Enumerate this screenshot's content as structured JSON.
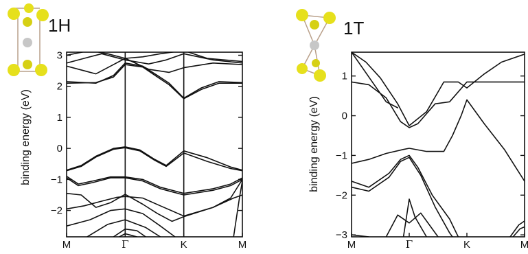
{
  "chart_data": [
    {
      "type": "line",
      "title": "1H",
      "ylabel": "binding energy (eV)",
      "ylim": [
        -2.85,
        3.1
      ],
      "xlim": [
        0,
        3
      ],
      "x_ticks": [
        {
          "label": "M",
          "pos": 0
        },
        {
          "label": "Γ",
          "pos": 1
        },
        {
          "label": "K",
          "pos": 2
        },
        {
          "label": "M",
          "pos": 3
        }
      ],
      "y_ticks": [
        -2,
        -1,
        0,
        1,
        2,
        3
      ],
      "vertical_lines": [
        1,
        2
      ],
      "series": [
        {
          "values": [
            [
              0,
              3.0
            ],
            [
              0.4,
              3.15
            ],
            [
              0.7,
              3.05
            ],
            [
              1,
              2.9
            ],
            [
              1.3,
              2.95
            ],
            [
              1.6,
              3.05
            ],
            [
              2,
              3.15
            ],
            [
              2.4,
              2.9
            ],
            [
              3,
              2.8
            ]
          ]
        },
        {
          "values": [
            [
              0,
              2.75
            ],
            [
              0.3,
              2.9
            ],
            [
              0.6,
              3.05
            ],
            [
              1,
              2.85
            ],
            [
              1.4,
              2.72
            ],
            [
              1.7,
              2.85
            ],
            [
              2,
              3.05
            ],
            [
              2.5,
              2.85
            ],
            [
              3,
              2.75
            ]
          ]
        },
        {
          "values": [
            [
              0,
              2.65
            ],
            [
              0.5,
              2.4
            ],
            [
              0.8,
              2.7
            ],
            [
              1,
              2.9
            ],
            [
              1.4,
              2.55
            ],
            [
              1.75,
              2.45
            ],
            [
              2,
              2.6
            ],
            [
              2.5,
              2.75
            ],
            [
              3,
              2.7
            ]
          ]
        },
        {
          "values": [
            [
              0,
              2.15
            ],
            [
              0.5,
              2.1
            ],
            [
              0.8,
              2.35
            ],
            [
              1,
              2.75
            ],
            [
              1.3,
              2.65
            ],
            [
              1.55,
              2.35
            ],
            [
              1.75,
              2.1
            ],
            [
              2,
              1.62
            ],
            [
              2.3,
              1.95
            ],
            [
              2.6,
              2.15
            ],
            [
              3,
              2.12
            ]
          ]
        },
        {
          "values": [
            [
              0,
              2.1
            ],
            [
              0.5,
              2.12
            ],
            [
              0.8,
              2.3
            ],
            [
              1,
              2.7
            ],
            [
              1.3,
              2.62
            ],
            [
              1.55,
              2.3
            ],
            [
              1.75,
              2.05
            ],
            [
              2,
              1.6
            ],
            [
              2.3,
              1.9
            ],
            [
              2.6,
              2.1
            ],
            [
              3,
              2.1
            ]
          ]
        },
        {
          "values": [
            [
              0,
              -0.7
            ],
            [
              0.25,
              -0.55
            ],
            [
              0.5,
              -0.25
            ],
            [
              0.8,
              0.0
            ],
            [
              1,
              0.05
            ],
            [
              1.25,
              -0.05
            ],
            [
              1.5,
              -0.35
            ],
            [
              1.7,
              -0.55
            ],
            [
              2,
              -0.08
            ],
            [
              2.4,
              -0.3
            ],
            [
              2.8,
              -0.6
            ],
            [
              3,
              -0.7
            ]
          ]
        },
        {
          "values": [
            [
              0,
              -0.72
            ],
            [
              0.25,
              -0.58
            ],
            [
              0.5,
              -0.28
            ],
            [
              0.8,
              -0.03
            ],
            [
              1,
              0.02
            ],
            [
              1.25,
              -0.08
            ],
            [
              1.5,
              -0.38
            ],
            [
              1.7,
              -0.58
            ],
            [
              2,
              -0.15
            ],
            [
              2.4,
              -0.42
            ],
            [
              2.8,
              -0.65
            ],
            [
              3,
              -0.72
            ]
          ]
        },
        {
          "values": [
            [
              0,
              -0.9
            ],
            [
              0.2,
              -1.15
            ],
            [
              0.45,
              -1.05
            ],
            [
              0.75,
              -0.92
            ],
            [
              1,
              -0.92
            ],
            [
              1.3,
              -1.0
            ],
            [
              1.6,
              -1.25
            ],
            [
              2,
              -1.45
            ],
            [
              2.5,
              -1.3
            ],
            [
              2.8,
              -1.15
            ],
            [
              3,
              -0.95
            ]
          ]
        },
        {
          "values": [
            [
              0,
              -0.95
            ],
            [
              0.2,
              -1.2
            ],
            [
              0.45,
              -1.1
            ],
            [
              0.75,
              -0.95
            ],
            [
              1,
              -0.95
            ],
            [
              1.3,
              -1.05
            ],
            [
              1.6,
              -1.3
            ],
            [
              2,
              -1.5
            ],
            [
              2.5,
              -1.35
            ],
            [
              2.8,
              -1.2
            ],
            [
              3,
              -1.0
            ]
          ]
        },
        {
          "values": [
            [
              0,
              -1.45
            ],
            [
              0.25,
              -1.5
            ],
            [
              0.5,
              -1.9
            ],
            [
              0.75,
              -1.75
            ],
            [
              1,
              -1.48
            ],
            [
              1.3,
              -1.8
            ],
            [
              1.55,
              -2.1
            ],
            [
              1.8,
              -2.35
            ],
            [
              2,
              -2.2
            ],
            [
              2.5,
              -1.9
            ],
            [
              2.8,
              -1.6
            ],
            [
              3,
              -1.0
            ]
          ]
        },
        {
          "values": [
            [
              0,
              -1.95
            ],
            [
              0.3,
              -1.85
            ],
            [
              0.6,
              -1.7
            ],
            [
              0.85,
              -1.58
            ],
            [
              1,
              -1.55
            ],
            [
              1.3,
              -1.6
            ],
            [
              1.6,
              -1.85
            ],
            [
              2,
              -2.18
            ],
            [
              2.5,
              -1.9
            ],
            [
              2.85,
              -1.6
            ],
            [
              3,
              -1.5
            ]
          ]
        },
        {
          "values": [
            [
              0,
              -2.5
            ],
            [
              0.4,
              -2.3
            ],
            [
              0.75,
              -2.0
            ],
            [
              1,
              -1.95
            ],
            [
              1.3,
              -2.1
            ],
            [
              1.6,
              -2.5
            ],
            [
              1.85,
              -2.85
            ]
          ]
        },
        {
          "values": [
            [
              0.35,
              -2.85
            ],
            [
              0.7,
              -2.45
            ],
            [
              1,
              -2.3
            ],
            [
              1.35,
              -2.55
            ],
            [
              1.6,
              -2.85
            ]
          ]
        },
        {
          "values": [
            [
              0.8,
              -2.85
            ],
            [
              1,
              -2.6
            ],
            [
              1.2,
              -2.65
            ],
            [
              1.35,
              -2.85
            ]
          ]
        },
        {
          "values": [
            [
              0.9,
              -2.85
            ],
            [
              1,
              -2.75
            ],
            [
              1.1,
              -2.8
            ],
            [
              1.2,
              -2.85
            ]
          ]
        },
        {
          "values": [
            [
              2.85,
              -2.85
            ],
            [
              2.95,
              -1.6
            ],
            [
              3,
              -1.05
            ]
          ]
        }
      ]
    },
    {
      "type": "line",
      "title": "1T",
      "ylabel": "binding energy (eV)",
      "ylim": [
        -3.05,
        1.6
      ],
      "xlim": [
        0,
        3
      ],
      "x_ticks": [
        {
          "label": "M",
          "pos": 0
        },
        {
          "label": "Γ",
          "pos": 1
        },
        {
          "label": "K",
          "pos": 2
        },
        {
          "label": "M",
          "pos": 3
        }
      ],
      "y_ticks": [
        -3,
        -2,
        -1,
        0,
        1
      ],
      "vertical_lines": [],
      "series": [
        {
          "values": [
            [
              0,
              1.6
            ],
            [
              0.25,
              1.35
            ],
            [
              0.5,
              0.95
            ],
            [
              0.8,
              0.3
            ],
            [
              1,
              -0.25
            ],
            [
              1.3,
              0.1
            ],
            [
              1.6,
              0.85
            ],
            [
              1.85,
              0.85
            ],
            [
              2,
              0.7
            ],
            [
              2.3,
              1.05
            ],
            [
              2.6,
              1.35
            ],
            [
              3,
              1.55
            ]
          ]
        },
        {
          "values": [
            [
              0,
              0.85
            ],
            [
              0.3,
              0.78
            ],
            [
              0.6,
              0.45
            ],
            [
              0.85,
              -0.15
            ],
            [
              1,
              -0.3
            ],
            [
              1.15,
              -0.2
            ],
            [
              1.45,
              0.3
            ],
            [
              1.7,
              0.35
            ],
            [
              2,
              0.85
            ],
            [
              2.4,
              0.85
            ],
            [
              3,
              0.85
            ]
          ]
        },
        {
          "values": [
            [
              0,
              1.6
            ],
            [
              0.6,
              0.35
            ],
            [
              0.8,
              0.2
            ]
          ]
        },
        {
          "values": [
            [
              0.0,
              -1.2
            ],
            [
              0.3,
              -1.1
            ],
            [
              0.6,
              -0.95
            ],
            [
              0.9,
              -0.85
            ],
            [
              1,
              -0.82
            ],
            [
              1.3,
              -0.9
            ],
            [
              1.6,
              -0.9
            ],
            [
              1.75,
              -0.5
            ],
            [
              1.9,
              0.0
            ],
            [
              2,
              0.4
            ],
            [
              2.3,
              -0.2
            ],
            [
              2.65,
              -0.85
            ],
            [
              3,
              -1.65
            ]
          ]
        },
        {
          "values": [
            [
              0,
              -1.65
            ],
            [
              0.3,
              -1.8
            ],
            [
              0.65,
              -1.45
            ],
            [
              0.85,
              -1.1
            ],
            [
              1,
              -1.0
            ],
            [
              1.15,
              -1.3
            ],
            [
              1.4,
              -2.0
            ],
            [
              1.7,
              -2.6
            ],
            [
              1.85,
              -3.05
            ]
          ]
        },
        {
          "values": [
            [
              0,
              -1.8
            ],
            [
              0.3,
              -1.9
            ],
            [
              0.65,
              -1.55
            ],
            [
              0.85,
              -1.15
            ],
            [
              1,
              -1.05
            ],
            [
              1.2,
              -1.5
            ],
            [
              1.45,
              -2.3
            ],
            [
              1.7,
              -2.95
            ],
            [
              1.75,
              -3.05
            ]
          ]
        },
        {
          "values": [
            [
              0,
              -3.0
            ],
            [
              0.3,
              -3.05
            ]
          ]
        },
        {
          "values": [
            [
              0.6,
              -3.05
            ],
            [
              0.8,
              -2.5
            ],
            [
              1,
              -2.7
            ],
            [
              1.2,
              -2.45
            ],
            [
              1.35,
              -2.75
            ],
            [
              1.5,
              -3.05
            ]
          ]
        },
        {
          "values": [
            [
              0.9,
              -3.05
            ],
            [
              1,
              -2.1
            ],
            [
              1.1,
              -2.55
            ],
            [
              1.3,
              -3.05
            ]
          ]
        },
        {
          "values": [
            [
              2.75,
              -3.05
            ],
            [
              2.9,
              -2.75
            ],
            [
              3,
              -2.65
            ]
          ]
        },
        {
          "values": [
            [
              2.8,
              -3.05
            ],
            [
              2.92,
              -2.85
            ],
            [
              3,
              -2.8
            ]
          ]
        }
      ]
    }
  ]
}
